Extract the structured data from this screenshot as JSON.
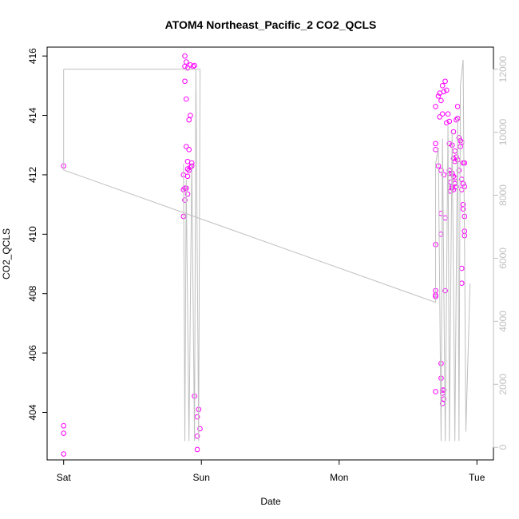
{
  "chart_data": {
    "type": "scatter",
    "title": "ATOM4 Northeast_Pacific_2 CO2_QCLS",
    "xlabel": "Date",
    "ylabel": "CO2_QCLS",
    "x_ticks": [
      "Sat",
      "Sun",
      "Mon",
      "Tue"
    ],
    "x_tick_values": [
      0,
      1,
      2,
      3
    ],
    "xlim": [
      -0.12,
      3.12
    ],
    "ylim": [
      402.4,
      416.3
    ],
    "y_ticks": [
      404,
      406,
      408,
      410,
      412,
      414,
      416
    ],
    "y2lim": [
      -400,
      12700
    ],
    "y2_ticks": [
      0,
      2000,
      4000,
      6000,
      8000,
      10000,
      12000
    ],
    "grid": false,
    "colors": {
      "points": "#ff00ff",
      "line": "#bfbfbf",
      "right_axis": "#bfbfbf"
    },
    "series": [
      {
        "role": "points",
        "axis": "left",
        "points": [
          [
            0.0,
            412.3
          ],
          [
            0.0,
            403.55
          ],
          [
            0.0,
            403.3
          ],
          [
            0.0,
            402.6
          ],
          [
            0.88,
            416.0
          ],
          [
            0.89,
            415.8
          ],
          [
            0.88,
            415.65
          ],
          [
            0.9,
            415.6
          ],
          [
            0.92,
            415.7
          ],
          [
            0.94,
            415.65
          ],
          [
            0.95,
            415.68
          ],
          [
            0.88,
            415.15
          ],
          [
            0.89,
            414.55
          ],
          [
            0.92,
            414.0
          ],
          [
            0.91,
            413.85
          ],
          [
            0.89,
            412.95
          ],
          [
            0.91,
            412.85
          ],
          [
            0.9,
            412.45
          ],
          [
            0.93,
            412.4
          ],
          [
            0.93,
            412.3
          ],
          [
            0.92,
            412.25
          ],
          [
            0.9,
            412.2
          ],
          [
            0.91,
            412.15
          ],
          [
            0.87,
            412.0
          ],
          [
            0.9,
            411.95
          ],
          [
            0.88,
            411.55
          ],
          [
            0.87,
            411.5
          ],
          [
            0.89,
            411.55
          ],
          [
            0.9,
            411.35
          ],
          [
            0.88,
            411.15
          ],
          [
            0.87,
            410.6
          ],
          [
            0.95,
            404.55
          ],
          [
            0.98,
            404.1
          ],
          [
            0.97,
            403.85
          ],
          [
            0.99,
            403.45
          ],
          [
            0.97,
            403.2
          ],
          [
            0.97,
            402.75
          ]
        ]
      },
      {
        "role": "points",
        "axis": "left",
        "points": [
          [
            2.7,
            414.3
          ],
          [
            2.73,
            414.75
          ],
          [
            2.72,
            414.65
          ],
          [
            2.74,
            414.5
          ],
          [
            2.73,
            413.95
          ],
          [
            2.75,
            414.05
          ],
          [
            2.76,
            414.8
          ],
          [
            2.77,
            415.15
          ],
          [
            2.78,
            414.85
          ],
          [
            2.75,
            415.0
          ],
          [
            2.79,
            414.05
          ],
          [
            2.78,
            413.75
          ],
          [
            2.8,
            413.8
          ],
          [
            2.83,
            413.45
          ],
          [
            2.82,
            413.0
          ],
          [
            2.8,
            413.05
          ],
          [
            2.85,
            413.85
          ],
          [
            2.86,
            414.3
          ],
          [
            2.86,
            413.9
          ],
          [
            2.87,
            413.25
          ],
          [
            2.88,
            413.15
          ],
          [
            2.89,
            413.1
          ],
          [
            2.88,
            412.95
          ],
          [
            2.84,
            412.8
          ],
          [
            2.83,
            412.55
          ],
          [
            2.85,
            412.6
          ],
          [
            2.84,
            412.45
          ],
          [
            2.86,
            412.5
          ],
          [
            2.87,
            412.15
          ],
          [
            2.8,
            412.15
          ],
          [
            2.8,
            412.05
          ],
          [
            2.82,
            412.05
          ],
          [
            2.83,
            411.95
          ],
          [
            2.84,
            411.9
          ],
          [
            2.81,
            411.75
          ],
          [
            2.82,
            411.6
          ],
          [
            2.84,
            411.7
          ],
          [
            2.82,
            411.55
          ],
          [
            2.83,
            411.5
          ],
          [
            2.81,
            411.45
          ],
          [
            2.85,
            411.6
          ],
          [
            2.89,
            411.85
          ],
          [
            2.9,
            411.7
          ],
          [
            2.91,
            411.6
          ],
          [
            2.89,
            411.5
          ],
          [
            2.9,
            412.4
          ],
          [
            2.91,
            412.4
          ],
          [
            2.7,
            413.05
          ],
          [
            2.7,
            412.85
          ],
          [
            2.72,
            412.3
          ],
          [
            2.74,
            412.15
          ],
          [
            2.76,
            412.0
          ],
          [
            2.74,
            410.7
          ],
          [
            2.77,
            410.55
          ],
          [
            2.74,
            410.0
          ],
          [
            2.7,
            409.65
          ],
          [
            2.9,
            411.0
          ],
          [
            2.9,
            410.85
          ],
          [
            2.91,
            410.6
          ],
          [
            2.91,
            410.1
          ],
          [
            2.91,
            409.95
          ],
          [
            2.7,
            408.1
          ],
          [
            2.7,
            407.95
          ],
          [
            2.7,
            407.9
          ],
          [
            2.77,
            408.1
          ],
          [
            2.89,
            408.85
          ],
          [
            2.89,
            408.35
          ],
          [
            2.74,
            405.65
          ],
          [
            2.74,
            405.15
          ],
          [
            2.75,
            404.75
          ],
          [
            2.76,
            404.75
          ],
          [
            2.7,
            404.7
          ],
          [
            2.75,
            404.65
          ],
          [
            2.76,
            404.45
          ],
          [
            2.75,
            404.3
          ]
        ]
      },
      {
        "role": "line",
        "axis": "right",
        "points": [
          [
            0.0,
            12000
          ],
          [
            0.0,
            8800
          ],
          [
            2.7,
            4600
          ],
          [
            2.7,
            9000
          ],
          [
            2.72,
            9500
          ],
          [
            2.74,
            200
          ],
          [
            2.75,
            9800
          ],
          [
            2.77,
            200
          ],
          [
            2.79,
            10200
          ],
          [
            2.8,
            200
          ],
          [
            2.82,
            10000
          ],
          [
            2.84,
            200
          ],
          [
            2.86,
            10500
          ],
          [
            2.87,
            200
          ],
          [
            2.88,
            11500
          ],
          [
            2.9,
            12300
          ],
          [
            2.92,
            500
          ],
          [
            2.95,
            5200
          ]
        ]
      },
      {
        "role": "line",
        "axis": "right",
        "points": [
          [
            0.0,
            12000
          ],
          [
            0.99,
            12000
          ],
          [
            0.98,
            200
          ],
          [
            0.96,
            12000
          ],
          [
            0.95,
            200
          ],
          [
            0.93,
            9000
          ],
          [
            0.91,
            200
          ],
          [
            0.89,
            8500
          ],
          [
            0.88,
            200
          ],
          [
            0.87,
            9000
          ]
        ]
      }
    ]
  }
}
